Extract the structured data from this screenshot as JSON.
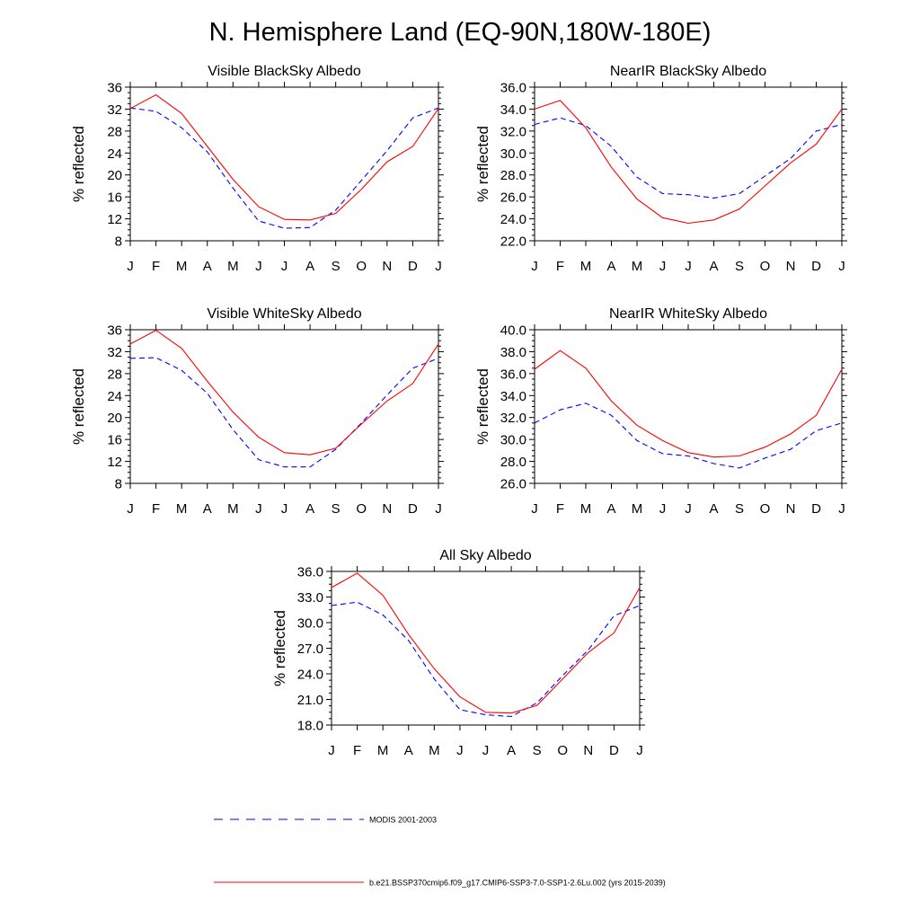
{
  "title": "N. Hemisphere Land (EQ-90N,180W-180E)",
  "colors": {
    "modis": "#0000ff",
    "model": "#ff0000"
  },
  "legend": {
    "modis_label": "MODIS 2001-2003",
    "model_label": "b.e21.BSSP370cmip6.f09_g17.CMIP6-SSP3-7.0-SSP1-2.6Lu.002 (yrs 2015-2039)"
  },
  "chart_data": [
    {
      "type": "line",
      "title": "Visible BlackSky Albedo",
      "ylabel": "% reflected",
      "x": [
        "J",
        "F",
        "M",
        "A",
        "M",
        "J",
        "J",
        "A",
        "S",
        "O",
        "N",
        "D",
        "J"
      ],
      "ylim": [
        8,
        36
      ],
      "yticks": [
        "8",
        "12",
        "16",
        "20",
        "24",
        "28",
        "32",
        "36"
      ],
      "series": [
        {
          "name": "MODIS 2001-2003",
          "style": "dashed",
          "color": "#0000ff",
          "values": [
            32.2,
            31.6,
            28.6,
            24.2,
            17.6,
            11.6,
            10.3,
            10.4,
            13.6,
            19.0,
            24.4,
            30.4,
            32.2
          ]
        },
        {
          "name": "b.e21.BSSP370cmip6.f09_g17.CMIP6-SSP3-7.0-SSP1-2.6Lu.002 (yrs 2015-2039)",
          "style": "solid",
          "color": "#ff0000",
          "values": [
            32.1,
            34.6,
            31.2,
            25.2,
            19.2,
            14.2,
            11.9,
            11.8,
            13.0,
            17.4,
            22.4,
            25.2,
            32.1
          ]
        }
      ]
    },
    {
      "type": "line",
      "title": "NearIR BlackSky Albedo",
      "ylabel": "% reflected",
      "x": [
        "J",
        "F",
        "M",
        "A",
        "M",
        "J",
        "J",
        "A",
        "S",
        "O",
        "N",
        "D",
        "J"
      ],
      "ylim": [
        22,
        36
      ],
      "yticks": [
        "22.0",
        "24.0",
        "26.0",
        "28.0",
        "30.0",
        "32.0",
        "34.0",
        "36.0"
      ],
      "series": [
        {
          "name": "MODIS 2001-2003",
          "style": "dashed",
          "color": "#0000ff",
          "values": [
            32.6,
            33.2,
            32.5,
            30.6,
            27.8,
            26.3,
            26.2,
            25.9,
            26.3,
            27.9,
            29.5,
            32.0,
            32.6
          ]
        },
        {
          "name": "b.e21.BSSP370cmip6.f09_g17.CMIP6-SSP3-7.0-SSP1-2.6Lu.002 (yrs 2015-2039)",
          "style": "solid",
          "color": "#ff0000",
          "values": [
            34.0,
            34.8,
            32.3,
            28.7,
            25.8,
            24.1,
            23.6,
            23.9,
            24.9,
            27.0,
            29.1,
            30.8,
            34.0
          ]
        }
      ]
    },
    {
      "type": "line",
      "title": "Visible WhiteSky Albedo",
      "ylabel": "% reflected",
      "x": [
        "J",
        "F",
        "M",
        "A",
        "M",
        "J",
        "J",
        "A",
        "S",
        "O",
        "N",
        "D",
        "J"
      ],
      "ylim": [
        8,
        36
      ],
      "yticks": [
        "8",
        "12",
        "16",
        "20",
        "24",
        "28",
        "32",
        "36"
      ],
      "series": [
        {
          "name": "MODIS 2001-2003",
          "style": "dashed",
          "color": "#0000ff",
          "values": [
            30.8,
            30.9,
            28.6,
            24.4,
            17.8,
            12.3,
            11.0,
            11.0,
            14.2,
            19.0,
            24.1,
            29.0,
            30.8
          ]
        },
        {
          "name": "b.e21.BSSP370cmip6.f09_g17.CMIP6-SSP3-7.0-SSP1-2.6Lu.002 (yrs 2015-2039)",
          "style": "solid",
          "color": "#ff0000",
          "values": [
            33.4,
            35.9,
            32.6,
            26.6,
            21.0,
            16.4,
            13.6,
            13.2,
            14.4,
            18.8,
            23.0,
            26.2,
            33.4
          ]
        }
      ]
    },
    {
      "type": "line",
      "title": "NearIR WhiteSky Albedo",
      "ylabel": "% reflected",
      "x": [
        "J",
        "F",
        "M",
        "A",
        "M",
        "J",
        "J",
        "A",
        "S",
        "O",
        "N",
        "D",
        "J"
      ],
      "ylim": [
        26,
        40
      ],
      "yticks": [
        "26.0",
        "28.0",
        "30.0",
        "32.0",
        "34.0",
        "36.0",
        "38.0",
        "40.0"
      ],
      "series": [
        {
          "name": "MODIS 2001-2003",
          "style": "dashed",
          "color": "#0000ff",
          "values": [
            31.5,
            32.7,
            33.3,
            32.2,
            29.9,
            28.7,
            28.5,
            27.8,
            27.4,
            28.3,
            29.1,
            30.8,
            31.5
          ]
        },
        {
          "name": "b.e21.BSSP370cmip6.f09_g17.CMIP6-SSP3-7.0-SSP1-2.6Lu.002 (yrs 2015-2039)",
          "style": "solid",
          "color": "#ff0000",
          "values": [
            36.4,
            38.1,
            36.5,
            33.5,
            31.3,
            29.9,
            28.8,
            28.4,
            28.5,
            29.3,
            30.5,
            32.2,
            36.4
          ]
        }
      ]
    },
    {
      "type": "line",
      "title": "All Sky Albedo",
      "ylabel": "% reflected",
      "x": [
        "J",
        "F",
        "M",
        "A",
        "M",
        "J",
        "J",
        "A",
        "S",
        "O",
        "N",
        "D",
        "J"
      ],
      "ylim": [
        18,
        36
      ],
      "yticks": [
        "18.0",
        "21.0",
        "24.0",
        "27.0",
        "30.0",
        "33.0",
        "36.0"
      ],
      "series": [
        {
          "name": "MODIS 2001-2003",
          "style": "dashed",
          "color": "#0000ff",
          "values": [
            32.0,
            32.4,
            30.9,
            27.9,
            23.4,
            19.8,
            19.2,
            19.0,
            20.6,
            23.8,
            26.8,
            30.8,
            32.0
          ]
        },
        {
          "name": "b.e21.BSSP370cmip6.f09_g17.CMIP6-SSP3-7.0-SSP1-2.6Lu.002 (yrs 2015-2039)",
          "style": "solid",
          "color": "#ff0000",
          "values": [
            34.1,
            35.8,
            33.2,
            28.6,
            24.6,
            21.3,
            19.5,
            19.4,
            20.3,
            23.4,
            26.5,
            28.8,
            34.1
          ]
        }
      ]
    }
  ]
}
